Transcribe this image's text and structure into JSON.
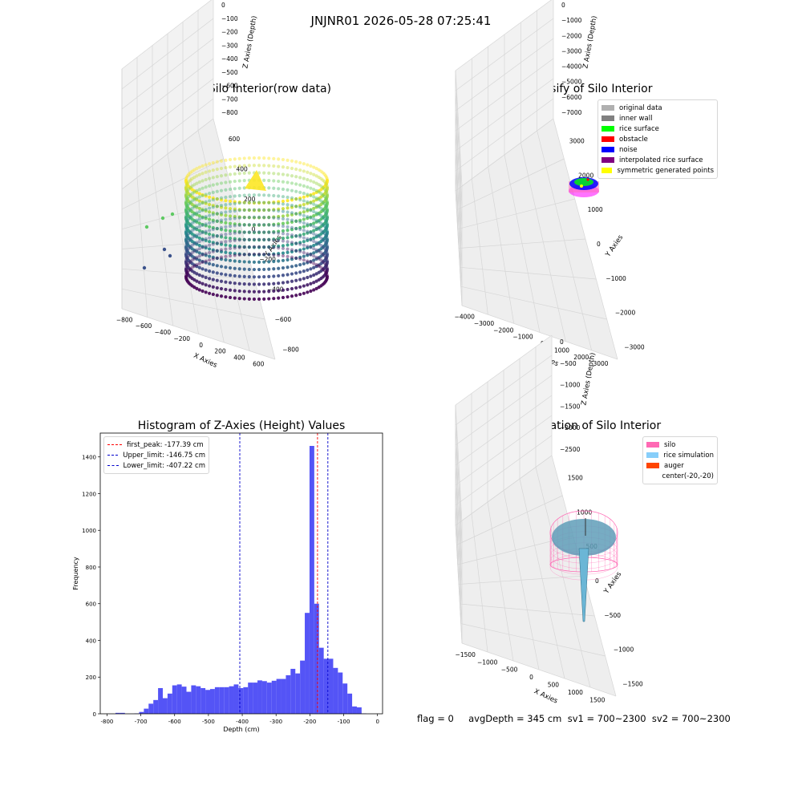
{
  "suptitle": "JNJNR01 2026-05-28 07:25:41",
  "footer": "flag = 0     avgDepth = 345 cm  sv1 = 700~2300  sv2 = 700~2300",
  "colors": {
    "hist_bar": "#4b4bf5",
    "first_peak_line": "#ff0000",
    "upper_line": "#0000cc",
    "lower_line": "#0000cc",
    "silo": "#ff69b4",
    "rice_simulation": "#87cefa",
    "auger": "#ff4500"
  },
  "panel1": {
    "title": "3D Plot of Silo Interior(row data)",
    "xlabel": "X Axies",
    "ylabel": "Y Axies",
    "zlabel": "Z Axies (Depth)",
    "xticks": [
      "−800",
      "−600",
      "−400",
      "−200",
      "0",
      "200",
      "400",
      "600"
    ],
    "yticks": [
      "600",
      "400",
      "200",
      "0",
      "−200",
      "−400",
      "−600",
      "−800"
    ],
    "zticks": [
      "0",
      "−100",
      "−200",
      "−300",
      "−400",
      "−500",
      "−600",
      "−700",
      "−800"
    ]
  },
  "panel2": {
    "title": "3D classify of Silo Interior",
    "xlabel": "X Axies",
    "ylabel": "Y Axies",
    "zlabel": "Z Axies (Depth)",
    "xticks": [
      "−4000",
      "−3000",
      "−2000",
      "−1000",
      "0",
      "1000",
      "2000",
      "3000"
    ],
    "yticks": [
      "3000",
      "2000",
      "1000",
      "0",
      "−1000",
      "−2000",
      "−3000"
    ],
    "zticks": [
      "0",
      "−1000",
      "−2000",
      "−3000",
      "−4000",
      "−5000",
      "−6000",
      "−7000"
    ],
    "legend": [
      {
        "label": "original data",
        "color": "#b0b0b0"
      },
      {
        "label": "inner wall",
        "color": "#808080"
      },
      {
        "label": "rice surface",
        "color": "#00ff00"
      },
      {
        "label": "obstacle",
        "color": "#ff0000"
      },
      {
        "label": "noise",
        "color": "#0000ff"
      },
      {
        "label": "interpolated rice surface",
        "color": "#800080"
      },
      {
        "label": "symmetric generated points",
        "color": "#ffff00"
      }
    ]
  },
  "panel4": {
    "title": "3D simulation of Silo Interior",
    "xlabel": "X Axies",
    "ylabel": "Y Axies",
    "zlabel": "Z Axies (Depth)",
    "xticks": [
      "−1500",
      "−1000",
      "−500",
      "0",
      "500",
      "1000",
      "1500"
    ],
    "yticks": [
      "1500",
      "1000",
      "500",
      "0",
      "−500",
      "−1000",
      "−1500"
    ],
    "zticks": [
      "0",
      "−500",
      "−1000",
      "−1500",
      "−2000",
      "−2500"
    ],
    "legend": [
      {
        "label": "silo",
        "color": "#ff69b4"
      },
      {
        "label": "rice simulation",
        "color": "#87cefa"
      },
      {
        "label": "auger",
        "color": "#ff4500"
      },
      {
        "label": "center(-20,-20)",
        "color": ""
      }
    ]
  },
  "chart_data": {
    "type": "bar",
    "title": "Histogram of Z-Axies (Height) Values",
    "xlabel": "Depth (cm)",
    "ylabel": "Frequency",
    "xlim": [
      -820,
      15
    ],
    "ylim": [
      0,
      1530
    ],
    "xticks": [
      -800,
      -700,
      -600,
      -500,
      -400,
      -300,
      -200,
      -100,
      0
    ],
    "yticks": [
      0,
      200,
      400,
      600,
      800,
      1000,
      1200,
      1400
    ],
    "bin_width": 14,
    "bins_start": [
      -775,
      -761,
      -747,
      -733,
      -719,
      -705,
      -691,
      -677,
      -663,
      -649,
      -635,
      -621,
      -607,
      -593,
      -579,
      -565,
      -551,
      -537,
      -523,
      -509,
      -495,
      -481,
      -467,
      -453,
      -439,
      -425,
      -411,
      -397,
      -383,
      -369,
      -355,
      -341,
      -327,
      -313,
      -299,
      -285,
      -271,
      -257,
      -243,
      -229,
      -215,
      -201,
      -187,
      -173,
      -159,
      -145,
      -131,
      -117,
      -103,
      -89,
      -75,
      -61,
      -47,
      -33,
      -19
    ],
    "values": [
      5,
      5,
      0,
      0,
      2,
      10,
      28,
      55,
      75,
      140,
      85,
      110,
      155,
      160,
      148,
      120,
      155,
      150,
      140,
      130,
      135,
      145,
      145,
      145,
      150,
      160,
      140,
      145,
      170,
      170,
      182,
      178,
      170,
      180,
      190,
      190,
      210,
      245,
      220,
      290,
      550,
      1460,
      600,
      360,
      300,
      300,
      250,
      225,
      165,
      110,
      40,
      35,
      2,
      0,
      0
    ],
    "vlines": [
      {
        "name": "first_peak: -177.39 cm",
        "x": -177.39
      },
      {
        "name": "Upper_limit: -146.75 cm",
        "x": -146.75
      },
      {
        "name": "Lower_limit: -407.22 cm",
        "x": -407.22
      }
    ]
  }
}
